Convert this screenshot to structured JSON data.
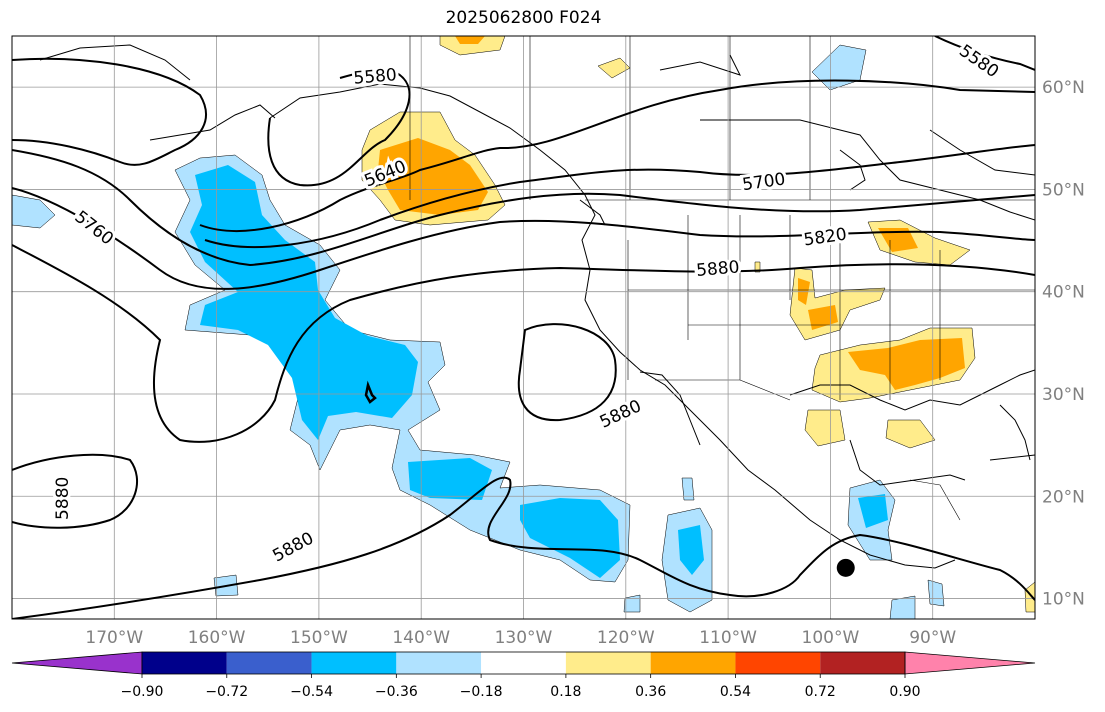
{
  "title": "2025062800 F024",
  "map": {
    "lon_range": [
      -180,
      -80
    ],
    "lat_range": [
      8,
      65
    ],
    "grid": true,
    "lon_ticks": [
      {
        "value": -170,
        "label": "170°W"
      },
      {
        "value": -160,
        "label": "160°W"
      },
      {
        "value": -150,
        "label": "150°W"
      },
      {
        "value": -140,
        "label": "140°W"
      },
      {
        "value": -130,
        "label": "130°W"
      },
      {
        "value": -120,
        "label": "120°W"
      },
      {
        "value": -110,
        "label": "110°W"
      },
      {
        "value": -100,
        "label": "100°W"
      },
      {
        "value": -90,
        "label": "90°W"
      }
    ],
    "lat_ticks": [
      {
        "value": 10,
        "label": "10°N"
      },
      {
        "value": 20,
        "label": "20°N"
      },
      {
        "value": 30,
        "label": "30°N"
      },
      {
        "value": 40,
        "label": "40°N"
      },
      {
        "value": 50,
        "label": "50°N"
      },
      {
        "value": 60,
        "label": "60°N"
      }
    ],
    "contour_labels": [
      {
        "text": "5580",
        "lon": -144.5,
        "lat": 61.0,
        "angle": -5
      },
      {
        "text": "5580",
        "lon": -85.5,
        "lat": 62.5,
        "angle": 35
      },
      {
        "text": "5640",
        "lon": -143.5,
        "lat": 51.5,
        "angle": -22
      },
      {
        "text": "5700",
        "lon": -106.5,
        "lat": 50.7,
        "angle": -8
      },
      {
        "text": "5760",
        "lon": -172.0,
        "lat": 46.2,
        "angle": 38
      },
      {
        "text": "5820",
        "lon": -100.5,
        "lat": 45.3,
        "angle": -8
      },
      {
        "text": "5880",
        "lon": -111.0,
        "lat": 42.2,
        "angle": -5
      },
      {
        "text": "5880",
        "lon": -120.5,
        "lat": 28.0,
        "angle": -25
      },
      {
        "text": "5880",
        "lon": -175.0,
        "lat": 19.8,
        "angle": -90
      },
      {
        "text": "5880",
        "lon": -152.5,
        "lat": 15.0,
        "angle": -28
      }
    ],
    "marker": {
      "lon": -98.5,
      "lat": 13.0
    }
  },
  "colorbar": {
    "levels": [
      -0.9,
      -0.72,
      -0.54,
      -0.36,
      -0.18,
      0.18,
      0.36,
      0.54,
      0.72,
      0.9
    ],
    "tick_labels": [
      "−0.90",
      "−0.72",
      "−0.54",
      "−0.36",
      "−0.18",
      "0.18",
      "0.36",
      "0.54",
      "0.72",
      "0.90"
    ],
    "colors": [
      "#9932cc",
      "#00008b",
      "#3a5fcd",
      "#00bfff",
      "#b0e2ff",
      "#ffffff",
      "#ffec8b",
      "#ffa500",
      "#ff4500",
      "#b22222",
      "#ff82ab"
    ]
  }
}
